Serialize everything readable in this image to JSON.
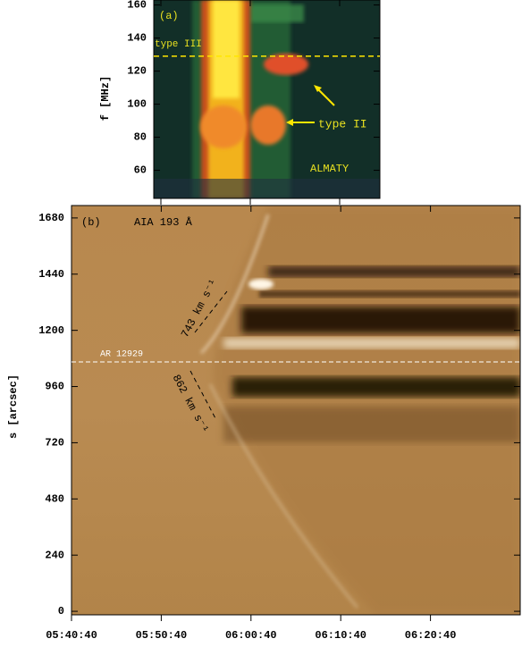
{
  "chart_data": [
    {
      "type": "spectrogram",
      "panel_label": "(a)",
      "ylabel": "f [MHz]",
      "ylim": [
        43,
        163
      ],
      "yticks": [
        60,
        80,
        100,
        120,
        140,
        160
      ],
      "xlim": [
        "05:49:52",
        "06:15:10"
      ],
      "hline": 129,
      "annotations": [
        "type III",
        "type II",
        "ALMATY"
      ]
    },
    {
      "type": "time-distance",
      "panel_label": "(b)",
      "instrument": "AIA 193 Å",
      "ylabel": "s [arcsec]",
      "ylim": [
        -15,
        1733
      ],
      "yticks": [
        0,
        240,
        480,
        720,
        960,
        1200,
        1440,
        1680
      ],
      "xlim": [
        "05:40:40",
        "06:30:40"
      ],
      "xticks": [
        "05:40:40",
        "05:50:40",
        "06:00:40",
        "06:10:40",
        "06:20:40"
      ],
      "reference_line": {
        "label": "AR 12929",
        "value": 1065
      },
      "annotations": [
        "743 km s⁻¹",
        "862 km s⁻¹"
      ]
    }
  ]
}
